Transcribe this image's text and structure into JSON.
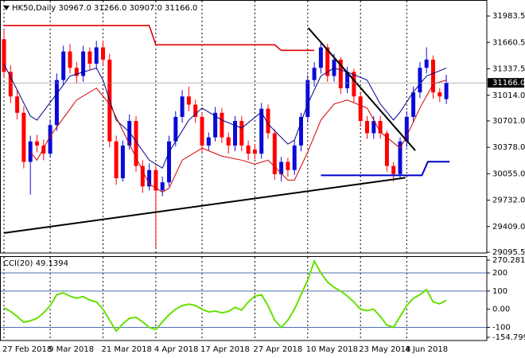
{
  "chart_data": [
    {
      "type": "candlestick",
      "title": "HK50,Daily  30967.0 31266.0 30907.0 31166.0",
      "categories": [
        "27 Feb 2018",
        null,
        null,
        null,
        null,
        null,
        null,
        "9 Mar 2018",
        null,
        null,
        null,
        null,
        null,
        null,
        null,
        "21 Mar 2018",
        null,
        null,
        null,
        null,
        null,
        null,
        null,
        "4 Apr 2018",
        null,
        null,
        null,
        null,
        null,
        null,
        "17 Apr 2018",
        null,
        null,
        null,
        null,
        null,
        null,
        null,
        "27 Apr 2018",
        null,
        null,
        null,
        null,
        null,
        null,
        null,
        "10 May 2018",
        null,
        null,
        null,
        null,
        null,
        null,
        null,
        "23 May 2018",
        null,
        null,
        null,
        null,
        null,
        null,
        "4 Jun 2018",
        null,
        null,
        null,
        null,
        null,
        null
      ],
      "open": [
        31700,
        31300,
        31000,
        30800,
        30200,
        30450,
        30400,
        30300,
        30650,
        31200,
        31550,
        31350,
        31250,
        31550,
        31400,
        31600,
        31450,
        30450,
        30000,
        30400,
        30700,
        30150,
        29900,
        30100,
        29850,
        29950,
        30450,
        30750,
        31000,
        30900,
        30750,
        30400,
        30500,
        30800,
        30500,
        30400,
        30700,
        30400,
        30350,
        30300,
        30850,
        30550,
        30050,
        30200,
        30100,
        30400,
        30750,
        31200,
        31350,
        31600,
        31250,
        31450,
        31100,
        31300,
        31000,
        30700,
        30550,
        30700,
        30550,
        30150,
        30050,
        30450,
        30750,
        31050,
        31350,
        31450,
        31050,
        30967
      ],
      "high": [
        31820,
        31380,
        31080,
        30880,
        30520,
        30530,
        30470,
        30720,
        31280,
        31620,
        31640,
        31420,
        31620,
        31600,
        31680,
        31680,
        31520,
        30520,
        30460,
        30780,
        30760,
        30220,
        30180,
        30150,
        30020,
        30520,
        30820,
        31080,
        31120,
        30960,
        30800,
        30560,
        30870,
        30860,
        30560,
        30760,
        30760,
        30460,
        30420,
        30920,
        30900,
        30600,
        30260,
        30250,
        30460,
        30800,
        31260,
        31420,
        31670,
        31640,
        31520,
        31480,
        31360,
        31340,
        31060,
        30760,
        30760,
        30760,
        30580,
        30200,
        30500,
        30820,
        31120,
        31420,
        31600,
        31500,
        31100,
        31266
      ],
      "low": [
        31220,
        30920,
        30720,
        30120,
        29800,
        30320,
        30220,
        30250,
        30580,
        31140,
        31280,
        31160,
        31180,
        31330,
        31330,
        31380,
        30380,
        29920,
        29960,
        30350,
        30080,
        29820,
        29850,
        29150,
        29780,
        29900,
        30390,
        30680,
        30820,
        30680,
        30320,
        30340,
        30450,
        30430,
        30300,
        30330,
        30330,
        30220,
        30230,
        30240,
        30480,
        29980,
        29960,
        30020,
        30040,
        30330,
        30680,
        31120,
        31280,
        31180,
        31180,
        31030,
        31040,
        30930,
        30630,
        30480,
        30480,
        30480,
        30080,
        29960,
        29990,
        30380,
        30680,
        30980,
        31280,
        30970,
        30930,
        30907
      ],
      "close": [
        31300,
        31000,
        30800,
        30200,
        30450,
        30400,
        30300,
        30650,
        31200,
        31550,
        31350,
        31250,
        31550,
        31400,
        31600,
        31450,
        30450,
        30000,
        30400,
        30700,
        30150,
        29900,
        30100,
        29850,
        29950,
        30450,
        30750,
        31000,
        30900,
        30750,
        30400,
        30500,
        30800,
        30500,
        30400,
        30700,
        30400,
        30300,
        30300,
        30850,
        30550,
        30050,
        30200,
        30100,
        30400,
        30750,
        31200,
        31350,
        31600,
        31250,
        31450,
        31100,
        31300,
        31000,
        30700,
        30550,
        30700,
        30550,
        30150,
        30050,
        30450,
        30750,
        31050,
        31350,
        31450,
        31050,
        31000,
        31166
      ],
      "up_color": "#0a0ad8",
      "down_color": "#ff0000",
      "overlays": [
        {
          "color": "#e00000",
          "width": 1.6,
          "x": [
            0,
            22,
            23,
            41,
            42,
            47
          ],
          "values": [
            31866,
            31866,
            31631,
            31631,
            31563,
            31563
          ]
        },
        {
          "color": "#00008b",
          "width": 1,
          "x": [
            0,
            4,
            5,
            10,
            14,
            15,
            17,
            19,
            22,
            24,
            25,
            28,
            30,
            33,
            36,
            39,
            40,
            43,
            44,
            46,
            48,
            50,
            52,
            55,
            57,
            59,
            60,
            62,
            64,
            67
          ],
          "values": [
            31396,
            30760,
            30711,
            31249,
            31347,
            31200,
            30711,
            30564,
            30221,
            30124,
            30319,
            30711,
            30858,
            30711,
            30613,
            30809,
            30662,
            30417,
            30466,
            30907,
            31249,
            31347,
            31298,
            31200,
            30907,
            30711,
            30809,
            31054,
            31249,
            31347
          ]
        },
        {
          "color": "#d00000",
          "width": 1,
          "x": [
            4,
            5,
            7,
            11,
            14,
            16,
            19,
            22,
            24,
            25,
            27,
            30,
            33,
            36,
            38,
            40,
            43,
            44,
            46,
            48,
            50,
            52,
            55,
            57,
            60,
            61,
            63,
            65,
            67
          ],
          "values": [
            30319,
            30221,
            30515,
            30956,
            31102,
            30907,
            30417,
            29928,
            29830,
            29879,
            30221,
            30368,
            30270,
            30221,
            30172,
            30221,
            29977,
            29977,
            30319,
            30711,
            30907,
            30956,
            30858,
            30564,
            30368,
            30515,
            30858,
            31151,
            31200
          ]
        },
        {
          "color": "#000000",
          "width": 2,
          "x": [
            0,
            60.8
          ],
          "values": [
            29330,
            30006
          ]
        },
        {
          "color": "#000000",
          "width": 2,
          "x": [
            46.1,
            62.3
          ],
          "values": [
            31837,
            30339
          ]
        },
        {
          "color": "#0000cc",
          "width": 2,
          "x": [
            48,
            63.3,
            64.2,
            67.5
          ],
          "values": [
            30035,
            30035,
            30202,
            30202
          ]
        }
      ],
      "ylim": [
        29086,
        32179
      ],
      "yticks": [
        {
          "value": 29095.5,
          "label": "29095.5"
        },
        {
          "value": 29409,
          "label": "29409.0"
        },
        {
          "value": 29732,
          "label": "29732.0"
        },
        {
          "value": 30055,
          "label": "30055.0"
        },
        {
          "value": 30378,
          "label": "30378.0"
        },
        {
          "value": 30701,
          "label": "30701.0"
        },
        {
          "value": 31014,
          "label": "31014.0"
        },
        31337.5,
        31660.5,
        31983.5
      ],
      "last_label": {
        "value": 31166,
        "label": "31166.0"
      }
    },
    {
      "type": "line",
      "title": "CCI(20) 49.1394",
      "color": "#66e000",
      "values": [
        8,
        -12,
        -40,
        -72,
        -64,
        -50,
        -20,
        20,
        80,
        90,
        72,
        60,
        70,
        50,
        40,
        0,
        -60,
        -120,
        -80,
        -50,
        -45,
        -70,
        -100,
        -112,
        -70,
        -30,
        0,
        20,
        28,
        20,
        0,
        -15,
        -10,
        -20,
        -12,
        10,
        -5,
        40,
        72,
        80,
        20,
        -60,
        -100,
        -60,
        0,
        80,
        160,
        265,
        200,
        150,
        120,
        100,
        72,
        40,
        0,
        -8,
        0,
        -40,
        -88,
        -100,
        -40,
        20,
        60,
        80,
        108,
        40,
        30,
        49.1394
      ],
      "ylim": [
        -154.7994,
        270.2811
      ],
      "yticks": [
        -154.7994,
        -100,
        {
          "value": 0,
          "label": "0.00"
        },
        100,
        200,
        270.2811
      ],
      "levels": [
        200,
        100,
        -100
      ],
      "level_color": "#4a6fb0"
    }
  ]
}
